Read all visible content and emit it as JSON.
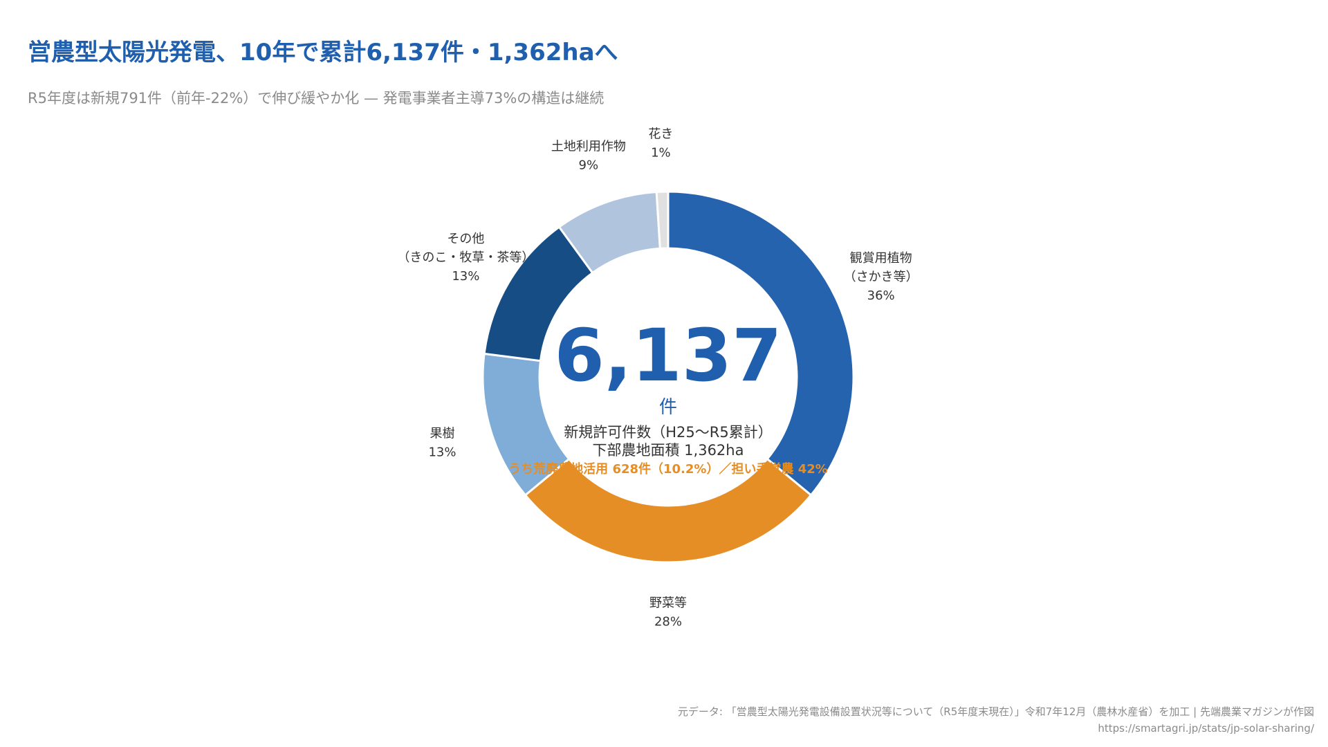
{
  "header": {
    "title": "営農型太陽光発電、10年で累計6,137件・1,362haへ",
    "subtitle": "R5年度は新規791件（前年-22%）で伸び緩やか化 — 発電事業者主導73%の構造は継続"
  },
  "center": {
    "value": "6,137",
    "unit": "件",
    "line1": "新規許可件数（H25〜R5累計）",
    "line2": "下部農地面積 1,362ha",
    "highlight": "うち荒廃農地活用 628件（10.2%）／担い手営農 42%"
  },
  "footer": {
    "source": "元データ: 「営農型太陽光発電設備設置状況等について（R5年度末現在）」令和7年12月（農林水産省）を加工 | 先端農業マガジンが作図",
    "url": "https://smartagri.jp/stats/jp-solar-sharing/"
  },
  "chart_data": {
    "type": "pie",
    "donut": true,
    "start": "top",
    "direction": "clockwise",
    "slices": [
      {
        "label_lines": [
          "観賞用植物",
          "（さかき等）"
        ],
        "percent_label": "36%",
        "value": 36,
        "color": "#2563ae"
      },
      {
        "label_lines": [
          "野菜等"
        ],
        "percent_label": "28%",
        "value": 28,
        "color": "#e58e26"
      },
      {
        "label_lines": [
          "果樹"
        ],
        "percent_label": "13%",
        "value": 13,
        "color": "#7fadd8"
      },
      {
        "label_lines": [
          "その他",
          "（きのこ・牧草・茶等）"
        ],
        "percent_label": "13%",
        "value": 13,
        "color": "#164d84"
      },
      {
        "label_lines": [
          "土地利用作物"
        ],
        "percent_label": "9%",
        "value": 9,
        "color": "#b0c4de"
      },
      {
        "label_lines": [
          "花き"
        ],
        "percent_label": "1%",
        "value": 1,
        "color": "#e0e0e0"
      }
    ]
  }
}
